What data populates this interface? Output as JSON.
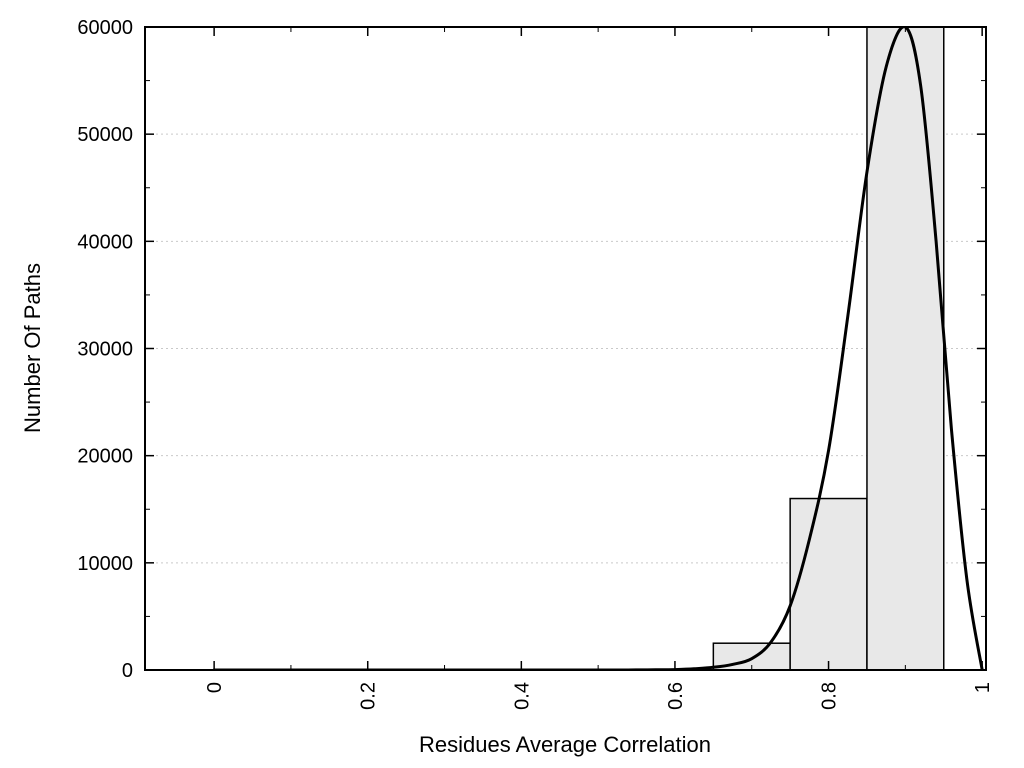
{
  "chart_data": {
    "type": "histogram",
    "title": "",
    "xlabel": "Residues Average Correlation",
    "ylabel": "Number Of Paths",
    "xlim": [
      -0.09,
      1.005
    ],
    "ylim": [
      0,
      60000
    ],
    "xticks": [
      0,
      0.2,
      0.4,
      0.6,
      0.8,
      1
    ],
    "xtick_labels": [
      "0",
      "0.2",
      "0.4",
      "0.6",
      "0.8",
      "1"
    ],
    "x_minor_ticks": [
      0.1,
      0.3,
      0.5,
      0.7,
      0.9
    ],
    "yticks": [
      0,
      10000,
      20000,
      30000,
      40000,
      50000,
      60000
    ],
    "ytick_labels": [
      "0",
      "10000",
      "20000",
      "30000",
      "40000",
      "50000",
      "60000"
    ],
    "y_minor_ticks": [
      5000,
      15000,
      25000,
      35000,
      45000,
      55000
    ],
    "grid": {
      "horizontal": true,
      "style": "dotted",
      "color": "#c9c9c9"
    },
    "bars": [
      {
        "x0": 0.65,
        "x1": 0.75,
        "value": 2500
      },
      {
        "x0": 0.75,
        "x1": 0.85,
        "value": 16000
      },
      {
        "x0": 0.85,
        "x1": 0.95,
        "value": 60000
      }
    ],
    "bar_fill": "#e8e8e8",
    "bar_stroke": "#000000",
    "curve": {
      "color": "#000000",
      "width": 3,
      "x": [
        0,
        0.05,
        0.1,
        0.15,
        0.2,
        0.25,
        0.3,
        0.35,
        0.4,
        0.45,
        0.5,
        0.525,
        0.55,
        0.575,
        0.6,
        0.625,
        0.65,
        0.675,
        0.7,
        0.725,
        0.75,
        0.775,
        0.8,
        0.825,
        0.85,
        0.875,
        0.9,
        0.92,
        0.94,
        0.96,
        0.98,
        1.0
      ],
      "y": [
        0,
        0,
        0,
        0,
        0,
        0,
        0,
        0,
        0,
        0,
        0,
        2,
        6,
        15,
        40,
        110,
        250,
        520,
        1050,
        2600,
        6000,
        12200,
        20500,
        33000,
        46500,
        56300,
        60000,
        54500,
        40000,
        22500,
        8500,
        0
      ]
    },
    "background": "#ffffff",
    "axis_color": "#000000"
  }
}
